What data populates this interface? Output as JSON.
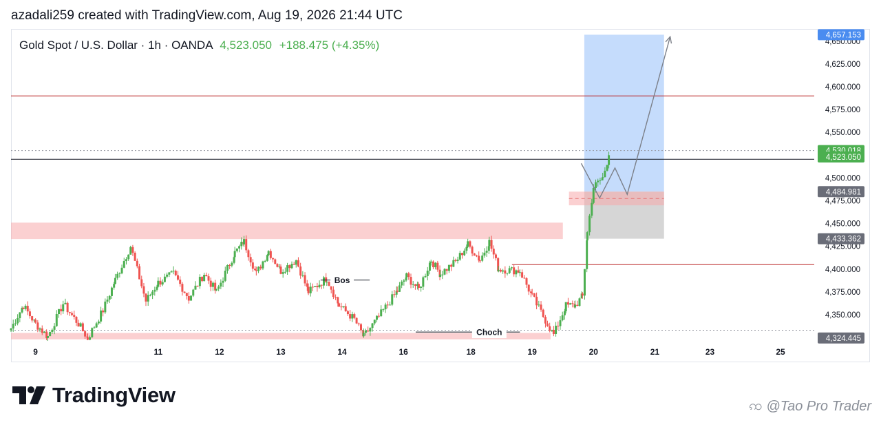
{
  "caption": "azadali259 created with TradingView.com, Aug 19, 2026 21:44 UTC",
  "legend": {
    "symbol": "Gold Spot / U.S. Dollar · 1h · OANDA",
    "price": "4,523.050",
    "change": "+188.475 (+4.35%)"
  },
  "brand": {
    "name": "TradingView",
    "logo_icon": "tradingview-logo-icon"
  },
  "watermark": {
    "text": "@Tao Pro Trader",
    "icon": "swirl-icon"
  },
  "colors": {
    "up": "#4caf50",
    "down": "#ef5350",
    "zone": "#f7a9ac",
    "target": "#bbd6fb",
    "stop": "#c8c8c8",
    "level": "#b71c1c",
    "price_tag": "#4caf50",
    "target_tag": "#2962ff"
  },
  "chart_data": {
    "type": "candlestick",
    "title": "Gold Spot / U.S. Dollar · 1h · OANDA",
    "ylim": [
      4322,
      4662
    ],
    "yticks": [
      4325,
      4350,
      4375,
      4400,
      4425,
      4450,
      4475,
      4500,
      4525,
      4550,
      4575,
      4600,
      4625,
      4650
    ],
    "ytick_labels": [
      "4,325.000",
      "4,350.000",
      "4,375.000",
      "4,400.000",
      "4,425.000",
      "4,450.000",
      "4,475.000",
      "4,500.000",
      "4,525.000",
      "4,550.000",
      "4,575.000",
      "4,600.000",
      "4,625.000",
      "4,650.000"
    ],
    "xticks": [
      {
        "label": "9",
        "x": 8.5
      },
      {
        "label": "11",
        "x": 10.5
      },
      {
        "label": "12",
        "x": 11.5
      },
      {
        "label": "13",
        "x": 12.5
      },
      {
        "label": "14",
        "x": 13.5
      },
      {
        "label": "16",
        "x": 14.5
      },
      {
        "label": "18",
        "x": 15.6
      },
      {
        "label": "19",
        "x": 16.6
      },
      {
        "label": "20",
        "x": 17.6
      },
      {
        "label": "21",
        "x": 18.6
      },
      {
        "label": "23",
        "x": 19.5
      },
      {
        "label": "25",
        "x": 20.65
      }
    ],
    "xlim": [
      8.1,
      21.2
    ],
    "price_tags": [
      {
        "value": 4657.153,
        "label": "4,657.153",
        "style": "target"
      },
      {
        "value": 4530.018,
        "label": "4,530.018",
        "style": "up"
      },
      {
        "value": 4523.05,
        "label": "4,523.050",
        "style": "up"
      },
      {
        "value": 4484.981,
        "label": "4,484.981",
        "style": "gray"
      },
      {
        "value": 4433.362,
        "label": "4,433.362",
        "style": "gray"
      },
      {
        "value": 4324.445,
        "label": "4,324.445",
        "style": "gray"
      }
    ],
    "horizontal_lines": [
      {
        "value": 4590,
        "x_from": 8.1,
        "x_to": 21.2,
        "color": "#b71c1c",
        "style": "solid"
      },
      {
        "value": 4520.5,
        "x_from": 8.1,
        "x_to": 21.2,
        "color": "#131722",
        "style": "solid"
      },
      {
        "value": 4530.018,
        "x_from": 8.1,
        "x_to": 21.2,
        "color": "#9598a1",
        "style": "dotted"
      },
      {
        "value": 4333,
        "x_from": 8.1,
        "x_to": 21.2,
        "color": "#9598a1",
        "style": "dotted"
      },
      {
        "value": 4405,
        "x_from": 16.27,
        "x_to": 21.2,
        "color": "#b71c1c",
        "style": "solid"
      }
    ],
    "zones": [
      {
        "name": "supply-zone",
        "x_from": 8.1,
        "x_to": 17.1,
        "y_from": 4433,
        "y_to": 4451
      },
      {
        "name": "demand-zone",
        "x_from": 8.1,
        "x_to": 16.9,
        "y_from": 4323,
        "y_to": 4330
      },
      {
        "name": "entry-zone",
        "x_from": 17.2,
        "x_to": 18.75,
        "y_from": 4470,
        "y_to": 4485
      }
    ],
    "position": {
      "x_from": 17.45,
      "x_to": 18.75,
      "entry": 4484.981,
      "target": 4657.153,
      "stop": 4433.362
    },
    "annotations": [
      {
        "label": "Bos",
        "x": 13.5,
        "y": 4388,
        "line_from": 13.15,
        "line_to": 13.95
      },
      {
        "label": "Choch",
        "x": 15.9,
        "y": 4331,
        "line_from": 14.7,
        "line_to": 16.4
      }
    ],
    "projection": [
      [
        17.4,
        4516
      ],
      [
        17.7,
        4478
      ],
      [
        17.95,
        4511
      ],
      [
        18.15,
        4482
      ],
      [
        18.85,
        4655
      ]
    ],
    "anchors": [
      [
        8.1,
        4335
      ],
      [
        8.3,
        4360
      ],
      [
        8.5,
        4340
      ],
      [
        8.7,
        4326
      ],
      [
        8.95,
        4362
      ],
      [
        9.2,
        4340
      ],
      [
        9.35,
        4324
      ],
      [
        9.6,
        4355
      ],
      [
        9.8,
        4388
      ],
      [
        10.05,
        4425
      ],
      [
        10.3,
        4365
      ],
      [
        10.5,
        4385
      ],
      [
        10.75,
        4395
      ],
      [
        11.0,
        4368
      ],
      [
        11.25,
        4395
      ],
      [
        11.45,
        4375
      ],
      [
        11.75,
        4418
      ],
      [
        11.9,
        4430
      ],
      [
        12.1,
        4395
      ],
      [
        12.3,
        4420
      ],
      [
        12.5,
        4398
      ],
      [
        12.75,
        4410
      ],
      [
        12.95,
        4375
      ],
      [
        13.25,
        4390
      ],
      [
        13.45,
        4360
      ],
      [
        13.7,
        4345
      ],
      [
        13.85,
        4326
      ],
      [
        14.1,
        4348
      ],
      [
        14.4,
        4376
      ],
      [
        14.55,
        4392
      ],
      [
        14.75,
        4378
      ],
      [
        14.95,
        4410
      ],
      [
        15.1,
        4395
      ],
      [
        15.35,
        4408
      ],
      [
        15.55,
        4427
      ],
      [
        15.75,
        4410
      ],
      [
        15.9,
        4430
      ],
      [
        16.05,
        4400
      ],
      [
        16.4,
        4398
      ],
      [
        16.6,
        4370
      ],
      [
        16.85,
        4340
      ],
      [
        16.95,
        4328
      ],
      [
        17.15,
        4360
      ],
      [
        17.3,
        4360
      ],
      [
        17.42,
        4370
      ],
      [
        17.5,
        4440
      ],
      [
        17.6,
        4490
      ],
      [
        17.75,
        4500
      ],
      [
        17.85,
        4525
      ]
    ]
  }
}
